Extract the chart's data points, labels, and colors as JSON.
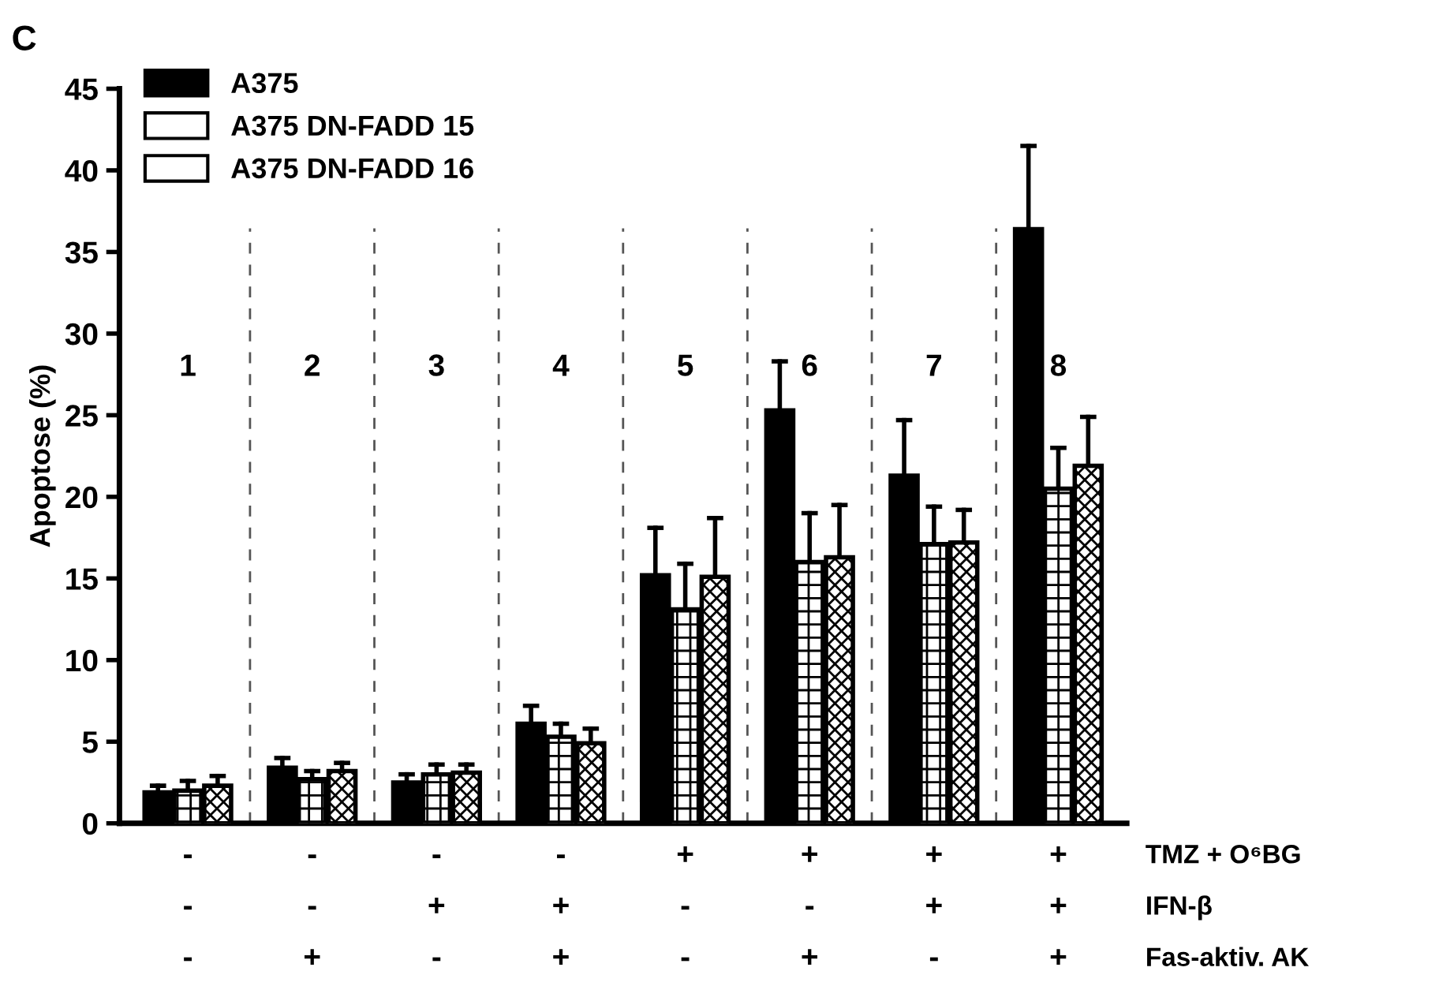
{
  "chart_data": {
    "type": "bar",
    "ylabel": "Apoptose (%)",
    "categories": [
      "1",
      "2",
      "3",
      "4",
      "5",
      "6",
      "7",
      "8"
    ],
    "series": [
      {
        "name": "A375",
        "color": "#000000",
        "values": [
          1.9,
          3.4,
          2.5,
          6.1,
          15.2,
          25.3,
          21.3,
          36.4
        ],
        "errors": [
          [
            1.9,
            2.3
          ],
          [
            3.4,
            4.0
          ],
          [
            2.5,
            3.0
          ],
          [
            6.1,
            7.2
          ],
          [
            15.2,
            18.1
          ],
          [
            25.3,
            28.3
          ],
          [
            21.3,
            24.7
          ],
          [
            36.4,
            41.5
          ]
        ]
      },
      {
        "name": "A375 DN-FADD 15",
        "color": "#ffffff",
        "values": [
          2.0,
          2.7,
          3.0,
          5.3,
          13.1,
          16.0,
          17.1,
          20.5
        ],
        "errors": [
          [
            2.0,
            2.6
          ],
          [
            2.7,
            3.2
          ],
          [
            3.0,
            3.6
          ],
          [
            5.3,
            6.1
          ],
          [
            13.1,
            15.9
          ],
          [
            16.0,
            19.0
          ],
          [
            17.1,
            19.4
          ],
          [
            20.5,
            23.0
          ]
        ]
      },
      {
        "name": "A375 DN-FADD 16",
        "color": "#ffffff",
        "values": [
          2.3,
          3.2,
          3.1,
          4.9,
          15.1,
          16.3,
          17.2,
          21.9
        ],
        "errors": [
          [
            2.3,
            2.9
          ],
          [
            3.2,
            3.7
          ],
          [
            3.1,
            3.6
          ],
          [
            4.9,
            5.8
          ],
          [
            15.1,
            18.7
          ],
          [
            16.3,
            19.5
          ],
          [
            17.2,
            19.2
          ],
          [
            21.9,
            24.9
          ]
        ]
      }
    ],
    "ylim": [
      0,
      45
    ],
    "yticks": [
      0,
      5,
      10,
      15,
      20,
      25,
      30,
      35,
      40,
      45
    ],
    "annotations": [
      "C",
      "-",
      "-",
      "-",
      "-",
      "+",
      "+",
      "+",
      "+",
      "TMZ + O⁶BG",
      "-",
      "-",
      "+",
      "+",
      "-",
      "-",
      "+",
      "+",
      "IFN-β",
      "-",
      "+",
      "-",
      "+",
      "-",
      "+",
      "-",
      "+",
      "Fas-aktiv. AK"
    ],
    "legend": "top left",
    "grid": false
  }
}
